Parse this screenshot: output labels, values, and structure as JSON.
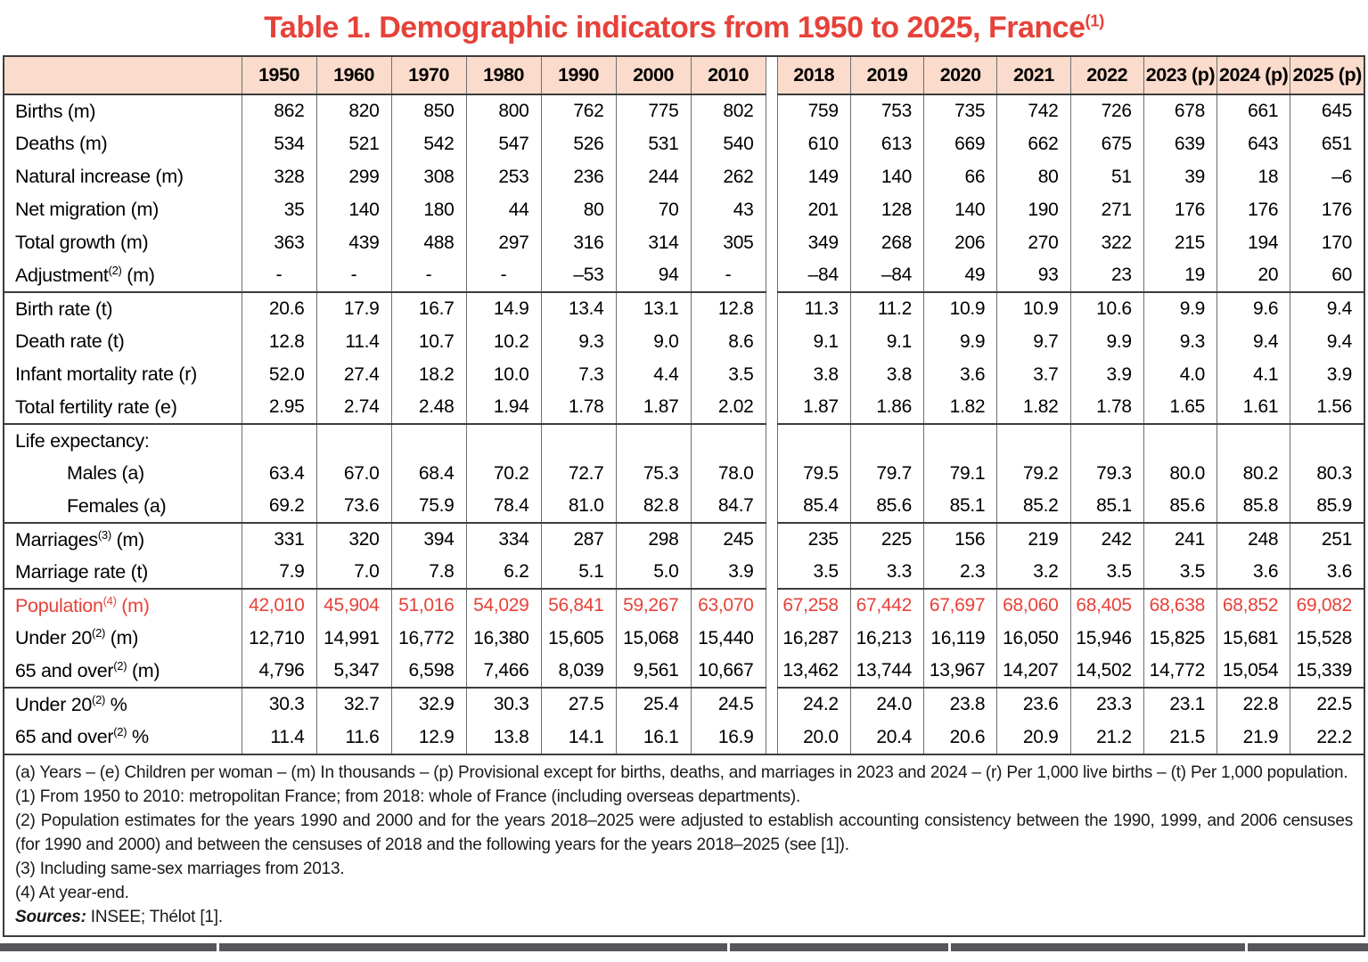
{
  "title": {
    "text": "Table 1. Demographic indicators from 1950 to 2025, France",
    "sup": "(1)"
  },
  "colors": {
    "accent_red": "#e6423a",
    "header_bg": "#fbdccc",
    "border_dark": "#3c3c3c",
    "border_mid": "#6f6f6f",
    "next_table_bar": "#57575b"
  },
  "table": {
    "year_groups": [
      [
        "1950",
        "1960",
        "1970",
        "1980",
        "1990",
        "2000",
        "2010"
      ],
      [
        "2018",
        "2019",
        "2020",
        "2021",
        "2022",
        "2023 (p)",
        "2024 (p)",
        "2025 (p)"
      ]
    ],
    "rows": [
      {
        "pre": "Births (m)",
        "values": [
          "862",
          "820",
          "850",
          "800",
          "762",
          "775",
          "802",
          "759",
          "753",
          "735",
          "742",
          "726",
          "678",
          "661",
          "645"
        ]
      },
      {
        "pre": "Deaths (m)",
        "values": [
          "534",
          "521",
          "542",
          "547",
          "526",
          "531",
          "540",
          "610",
          "613",
          "669",
          "662",
          "675",
          "639",
          "643",
          "651"
        ]
      },
      {
        "pre": "Natural increase (m)",
        "values": [
          "328",
          "299",
          "308",
          "253",
          "236",
          "244",
          "262",
          "149",
          "140",
          "66",
          "80",
          "51",
          "39",
          "18",
          "–6"
        ]
      },
      {
        "pre": "Net migration (m)",
        "values": [
          "35",
          "140",
          "180",
          "44",
          "80",
          "70",
          "43",
          "201",
          "128",
          "140",
          "190",
          "271",
          "176",
          "176",
          "176"
        ]
      },
      {
        "pre": "Total growth (m)",
        "values": [
          "363",
          "439",
          "488",
          "297",
          "316",
          "314",
          "305",
          "349",
          "268",
          "206",
          "270",
          "322",
          "215",
          "194",
          "170"
        ]
      },
      {
        "pre": "Adjustment",
        "sup": "(2)",
        "post": " (m)",
        "values": [
          "-",
          "-",
          "-",
          "-",
          "–53",
          "94",
          "-",
          "–84",
          "–84",
          "49",
          "93",
          "23",
          "19",
          "20",
          "60"
        ]
      },
      {
        "pre": "Birth rate (t)",
        "section": true,
        "values": [
          "20.6",
          "17.9",
          "16.7",
          "14.9",
          "13.4",
          "13.1",
          "12.8",
          "11.3",
          "11.2",
          "10.9",
          "10.9",
          "10.6",
          "9.9",
          "9.6",
          "9.4"
        ]
      },
      {
        "pre": "Death rate (t)",
        "values": [
          "12.8",
          "11.4",
          "10.7",
          "10.2",
          "9.3",
          "9.0",
          "8.6",
          "9.1",
          "9.1",
          "9.9",
          "9.7",
          "9.9",
          "9.3",
          "9.4",
          "9.4"
        ]
      },
      {
        "pre": "Infant mortality rate (r)",
        "values": [
          "52.0",
          "27.4",
          "18.2",
          "10.0",
          "7.3",
          "4.4",
          "3.5",
          "3.8",
          "3.8",
          "3.6",
          "3.7",
          "3.9",
          "4.0",
          "4.1",
          "3.9"
        ]
      },
      {
        "pre": "Total fertility rate (e)",
        "values": [
          "2.95",
          "2.74",
          "2.48",
          "1.94",
          "1.78",
          "1.87",
          "2.02",
          "1.87",
          "1.86",
          "1.82",
          "1.82",
          "1.78",
          "1.65",
          "1.61",
          "1.56"
        ]
      },
      {
        "pre": "Life expectancy:",
        "section": true,
        "values": [
          "",
          "",
          "",
          "",
          "",
          "",
          "",
          "",
          "",
          "",
          "",
          "",
          "",
          "",
          ""
        ]
      },
      {
        "pre": "Males (a)",
        "indent": true,
        "values": [
          "63.4",
          "67.0",
          "68.4",
          "70.2",
          "72.7",
          "75.3",
          "78.0",
          "79.5",
          "79.7",
          "79.1",
          "79.2",
          "79.3",
          "80.0",
          "80.2",
          "80.3"
        ]
      },
      {
        "pre": "Females (a)",
        "indent": true,
        "values": [
          "69.2",
          "73.6",
          "75.9",
          "78.4",
          "81.0",
          "82.8",
          "84.7",
          "85.4",
          "85.6",
          "85.1",
          "85.2",
          "85.1",
          "85.6",
          "85.8",
          "85.9"
        ]
      },
      {
        "pre": "Marriages",
        "sup": "(3)",
        "post": " (m)",
        "section": true,
        "values": [
          "331",
          "320",
          "394",
          "334",
          "287",
          "298",
          "245",
          "235",
          "225",
          "156",
          "219",
          "242",
          "241",
          "248",
          "251"
        ]
      },
      {
        "pre": "Marriage rate (t)",
        "values": [
          "7.9",
          "7.0",
          "7.8",
          "6.2",
          "5.1",
          "5.0",
          "3.9",
          "3.5",
          "3.3",
          "2.3",
          "3.2",
          "3.5",
          "3.5",
          "3.6",
          "3.6"
        ]
      },
      {
        "pre": "Population",
        "sup": "(4)",
        "post": " (m)",
        "section": true,
        "red": true,
        "values": [
          "42,010",
          "45,904",
          "51,016",
          "54,029",
          "56,841",
          "59,267",
          "63,070",
          "67,258",
          "67,442",
          "67,697",
          "68,060",
          "68,405",
          "68,638",
          "68,852",
          "69,082"
        ]
      },
      {
        "pre": "Under 20",
        "sup": "(2)",
        "post": " (m)",
        "values": [
          "12,710",
          "14,991",
          "16,772",
          "16,380",
          "15,605",
          "15,068",
          "15,440",
          "16,287",
          "16,213",
          "16,119",
          "16,050",
          "15,946",
          "15,825",
          "15,681",
          "15,528"
        ]
      },
      {
        "pre": "65 and over",
        "sup": "(2)",
        "post": " (m)",
        "values": [
          "4,796",
          "5,347",
          "6,598",
          "7,466",
          "8,039",
          "9,561",
          "10,667",
          "13,462",
          "13,744",
          "13,967",
          "14,207",
          "14,502",
          "14,772",
          "15,054",
          "15,339"
        ]
      },
      {
        "pre": "Under 20",
        "sup": "(2)",
        "post": " %",
        "section": true,
        "values": [
          "30.3",
          "32.7",
          "32.9",
          "30.3",
          "27.5",
          "25.4",
          "24.5",
          "24.2",
          "24.0",
          "23.8",
          "23.6",
          "23.3",
          "23.1",
          "22.8",
          "22.5"
        ]
      },
      {
        "pre": "65 and over",
        "sup": "(2)",
        "post": " %",
        "values": [
          "11.4",
          "11.6",
          "12.9",
          "13.8",
          "14.1",
          "16.1",
          "16.9",
          "20.0",
          "20.4",
          "20.6",
          "20.9",
          "21.2",
          "21.5",
          "21.9",
          "22.2"
        ]
      }
    ]
  },
  "footnotes": [
    "(a) Years – (e) Children per woman – (m) In thousands – (p) Provisional except for births, deaths, and marriages in 2023 and 2024 – (r) Per 1,000 live births – (t) Per 1,000 population.",
    "(1) From 1950 to 2010: metropolitan France; from 2018: whole of France (including overseas departments).",
    "(2) Population estimates for the years 1990 and 2000 and for the years 2018–2025 were adjusted to establish accounting consistency between the 1990, 1999, and 2006 censuses (for 1990 and 2000) and between the censuses of 2018 and the following years for the years 2018–2025 (see [1]).",
    "(3) Including same-sex marriages from 2013.",
    "(4) At year-end."
  ],
  "sources": {
    "label": "Sources:",
    "text": " INSEE; Thélot [1]."
  }
}
